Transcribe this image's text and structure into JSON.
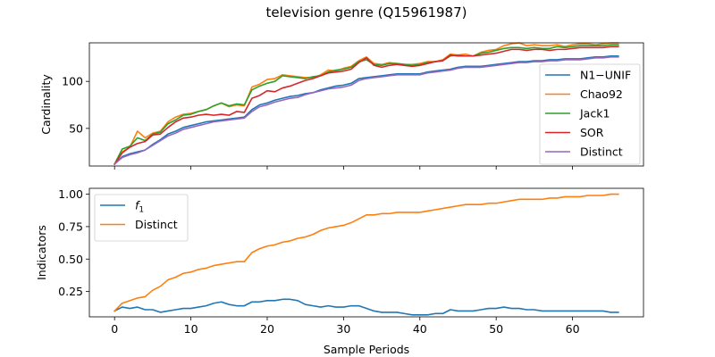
{
  "chart_data": {
    "title": "television genre (Q15961987)",
    "xlabel": "Sample Periods",
    "panels": [
      {
        "id": "top",
        "type": "line",
        "ylabel": "Cardinality",
        "xlim": [
          -3.3,
          69.3
        ],
        "ylim": [
          10,
          141
        ],
        "yticks": [
          50,
          100
        ],
        "xticks": [
          0,
          10,
          20,
          30,
          40,
          50,
          60
        ],
        "show_xtick_labels": false,
        "legend_position": "right",
        "series": [
          {
            "name": "N1−UNIF",
            "color": "#1f77b4",
            "values": [
              12,
              20,
              23,
              25,
              27,
              33,
              38,
              44,
              47,
              51,
              53,
              55,
              57,
              58,
              59,
              60,
              61,
              62,
              70,
              75,
              77,
              80,
              82,
              84,
              85,
              87,
              88,
              91,
              93,
              95,
              96,
              98,
              103,
              104,
              105,
              106,
              107,
              108,
              108,
              108,
              108,
              110,
              111,
              112,
              113,
              115,
              116,
              116,
              116,
              117,
              118,
              119,
              120,
              121,
              121,
              122,
              122,
              123,
              123,
              124,
              124,
              124,
              125,
              126,
              126,
              127,
              127
            ]
          },
          {
            "name": "Chao92",
            "color": "#ff7f0e",
            "values": [
              12,
              25,
              30,
              47,
              40,
              45,
              47,
              57,
              62,
              65,
              66,
              68,
              70,
              74,
              77,
              73,
              75,
              74,
              94,
              97,
              102,
              103,
              107,
              106,
              105,
              104,
              104,
              107,
              112,
              111,
              114,
              116,
              122,
              126,
              119,
              118,
              120,
              119,
              118,
              118,
              119,
              121,
              121,
              123,
              129,
              128,
              129,
              127,
              131,
              133,
              134,
              138,
              140,
              141,
              138,
              139,
              138,
              138,
              139,
              137,
              139,
              140,
              140,
              139,
              140,
              141,
              141
            ]
          },
          {
            "name": "Jack1",
            "color": "#2ca02c",
            "values": [
              12,
              28,
              31,
              40,
              37,
              44,
              46,
              55,
              59,
              64,
              65,
              68,
              70,
              74,
              77,
              74,
              76,
              75,
              91,
              95,
              98,
              100,
              106,
              105,
              104,
              103,
              105,
              106,
              110,
              112,
              113,
              115,
              121,
              123,
              118,
              117,
              119,
              119,
              118,
              117,
              118,
              120,
              121,
              122,
              127,
              128,
              127,
              127,
              130,
              131,
              133,
              135,
              136,
              136,
              135,
              136,
              135,
              135,
              137,
              136,
              137,
              138,
              138,
              138,
              138,
              139,
              139
            ]
          },
          {
            "name": "SOR",
            "color": "#d62728",
            "values": [
              12,
              24,
              30,
              34,
              36,
              43,
              44,
              51,
              57,
              61,
              62,
              64,
              65,
              64,
              65,
              64,
              68,
              67,
              82,
              85,
              90,
              89,
              93,
              95,
              98,
              101,
              103,
              106,
              109,
              110,
              111,
              113,
              120,
              125,
              117,
              115,
              117,
              118,
              117,
              116,
              117,
              119,
              121,
              122,
              128,
              127,
              127,
              127,
              128,
              129,
              130,
              132,
              134,
              134,
              133,
              134,
              134,
              133,
              134,
              134,
              135,
              136,
              136,
              136,
              136,
              137,
              137
            ]
          },
          {
            "name": "Distinct",
            "color": "#9467bd",
            "values": [
              12,
              19,
              22,
              24,
              27,
              32,
              37,
              42,
              45,
              49,
              51,
              53,
              55,
              57,
              58,
              59,
              60,
              61,
              68,
              73,
              75,
              78,
              80,
              82,
              83,
              86,
              88,
              90,
              92,
              93,
              94,
              96,
              101,
              103,
              104,
              105,
              106,
              107,
              107,
              107,
              107,
              109,
              110,
              111,
              112,
              114,
              115,
              115,
              115,
              116,
              117,
              118,
              119,
              120,
              120,
              121,
              121,
              122,
              122,
              123,
              123,
              123,
              124,
              125,
              125,
              126,
              126
            ]
          }
        ]
      },
      {
        "id": "bottom",
        "type": "line",
        "ylabel": "Indicators",
        "xlim": [
          -3.3,
          69.3
        ],
        "ylim": [
          0.055,
          1.045
        ],
        "yticks": [
          "0.25",
          "0.50",
          "0.75",
          "1.00"
        ],
        "xticks": [
          0,
          10,
          20,
          30,
          40,
          50,
          60
        ],
        "show_xtick_labels": true,
        "legend_position": "upper left",
        "series": [
          {
            "name": "f1",
            "color": "#1f77b4",
            "values": [
              0.1,
              0.13,
              0.12,
              0.13,
              0.11,
              0.11,
              0.09,
              0.1,
              0.11,
              0.12,
              0.12,
              0.13,
              0.14,
              0.16,
              0.17,
              0.15,
              0.14,
              0.14,
              0.17,
              0.17,
              0.18,
              0.18,
              0.19,
              0.19,
              0.18,
              0.15,
              0.14,
              0.13,
              0.14,
              0.13,
              0.13,
              0.14,
              0.14,
              0.12,
              0.1,
              0.09,
              0.09,
              0.09,
              0.08,
              0.07,
              0.07,
              0.07,
              0.08,
              0.08,
              0.11,
              0.1,
              0.1,
              0.1,
              0.11,
              0.12,
              0.12,
              0.13,
              0.12,
              0.12,
              0.11,
              0.11,
              0.1,
              0.1,
              0.1,
              0.1,
              0.1,
              0.1,
              0.1,
              0.1,
              0.1,
              0.09,
              0.09
            ]
          },
          {
            "name": "Distinct",
            "color": "#ff7f0e",
            "values": [
              0.1,
              0.16,
              0.18,
              0.2,
              0.21,
              0.26,
              0.29,
              0.34,
              0.36,
              0.39,
              0.4,
              0.42,
              0.43,
              0.45,
              0.46,
              0.47,
              0.48,
              0.48,
              0.55,
              0.58,
              0.6,
              0.61,
              0.63,
              0.64,
              0.66,
              0.67,
              0.69,
              0.72,
              0.74,
              0.75,
              0.76,
              0.78,
              0.81,
              0.84,
              0.84,
              0.85,
              0.85,
              0.86,
              0.86,
              0.86,
              0.86,
              0.87,
              0.88,
              0.89,
              0.9,
              0.91,
              0.92,
              0.92,
              0.92,
              0.93,
              0.93,
              0.94,
              0.95,
              0.96,
              0.96,
              0.96,
              0.96,
              0.97,
              0.97,
              0.98,
              0.98,
              0.98,
              0.99,
              0.99,
              0.99,
              1.0,
              1.0
            ]
          }
        ]
      }
    ]
  }
}
